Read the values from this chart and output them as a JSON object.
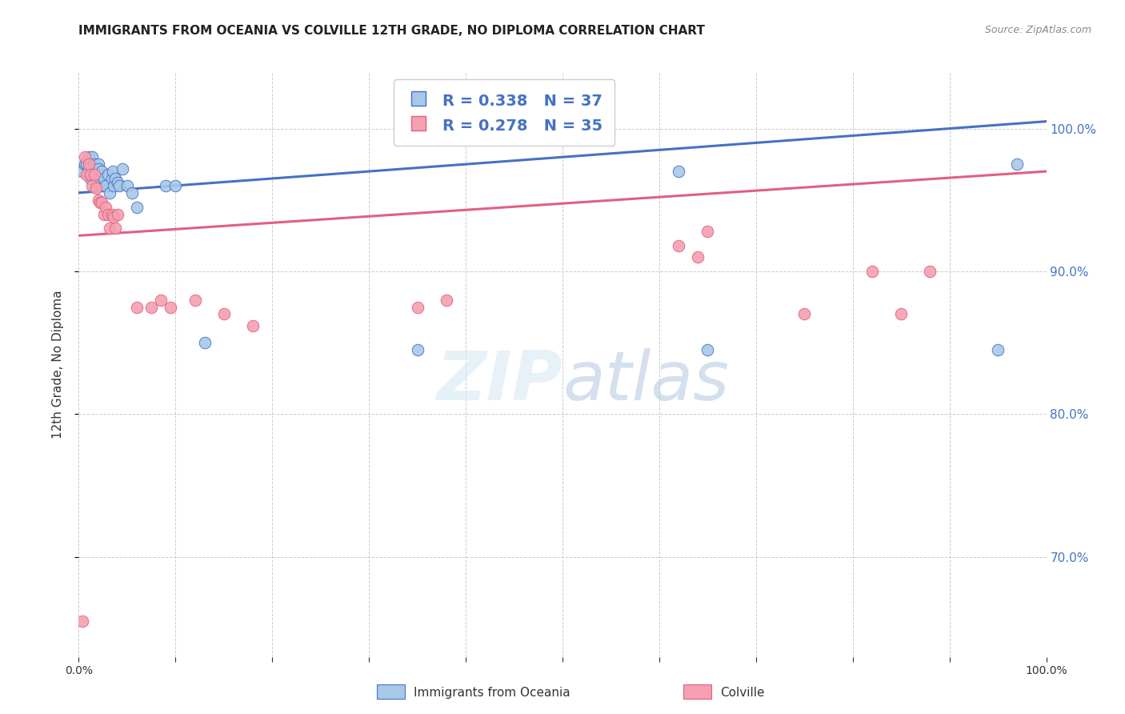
{
  "title": "IMMIGRANTS FROM OCEANIA VS COLVILLE 12TH GRADE, NO DIPLOMA CORRELATION CHART",
  "source_text": "Source: ZipAtlas.com",
  "ylabel_label": "12th Grade, No Diploma",
  "legend_label1": "Immigrants from Oceania",
  "legend_label2": "Colville",
  "R1": 0.338,
  "N1": 37,
  "R2": 0.278,
  "N2": 35,
  "xlim": [
    0,
    1
  ],
  "ylim": [
    0.63,
    1.04
  ],
  "blue_color": "#A8C8E8",
  "pink_color": "#F4A0B0",
  "blue_line_color": "#4472C4",
  "pink_line_color": "#E06080",
  "background_color": "#FFFFFF",
  "grid_color": "#CCCCCC",
  "title_color": "#222222",
  "blue_scatter_x": [
    0.004,
    0.006,
    0.008,
    0.01,
    0.01,
    0.012,
    0.014,
    0.016,
    0.018,
    0.018,
    0.02,
    0.02,
    0.022,
    0.024,
    0.025,
    0.026,
    0.028,
    0.03,
    0.032,
    0.034,
    0.035,
    0.036,
    0.038,
    0.04,
    0.042,
    0.045,
    0.05,
    0.055,
    0.06,
    0.09,
    0.1,
    0.13,
    0.35,
    0.62,
    0.65,
    0.95,
    0.97
  ],
  "blue_scatter_y": [
    0.97,
    0.975,
    0.975,
    0.98,
    0.972,
    0.965,
    0.98,
    0.975,
    0.97,
    0.965,
    0.975,
    0.972,
    0.968,
    0.97,
    0.96,
    0.965,
    0.96,
    0.968,
    0.955,
    0.965,
    0.97,
    0.96,
    0.965,
    0.962,
    0.96,
    0.972,
    0.96,
    0.955,
    0.945,
    0.96,
    0.96,
    0.85,
    0.845,
    0.97,
    0.845,
    0.845,
    0.975
  ],
  "pink_scatter_x": [
    0.004,
    0.006,
    0.008,
    0.01,
    0.012,
    0.014,
    0.016,
    0.018,
    0.02,
    0.022,
    0.024,
    0.026,
    0.028,
    0.03,
    0.032,
    0.034,
    0.036,
    0.038,
    0.04,
    0.06,
    0.075,
    0.085,
    0.095,
    0.12,
    0.15,
    0.18,
    0.35,
    0.38,
    0.62,
    0.65,
    0.75,
    0.82,
    0.85,
    0.88,
    0.64
  ],
  "pink_scatter_y": [
    0.655,
    0.98,
    0.968,
    0.975,
    0.968,
    0.96,
    0.968,
    0.958,
    0.95,
    0.948,
    0.948,
    0.94,
    0.945,
    0.94,
    0.93,
    0.94,
    0.938,
    0.93,
    0.94,
    0.875,
    0.875,
    0.88,
    0.875,
    0.88,
    0.87,
    0.862,
    0.875,
    0.88,
    0.918,
    0.928,
    0.87,
    0.9,
    0.87,
    0.9,
    0.91
  ],
  "blue_line_x0": 0.0,
  "blue_line_x1": 1.0,
  "blue_line_y0": 0.955,
  "blue_line_y1": 1.005,
  "pink_line_x0": 0.0,
  "pink_line_x1": 1.0,
  "pink_line_y0": 0.925,
  "pink_line_y1": 0.97
}
